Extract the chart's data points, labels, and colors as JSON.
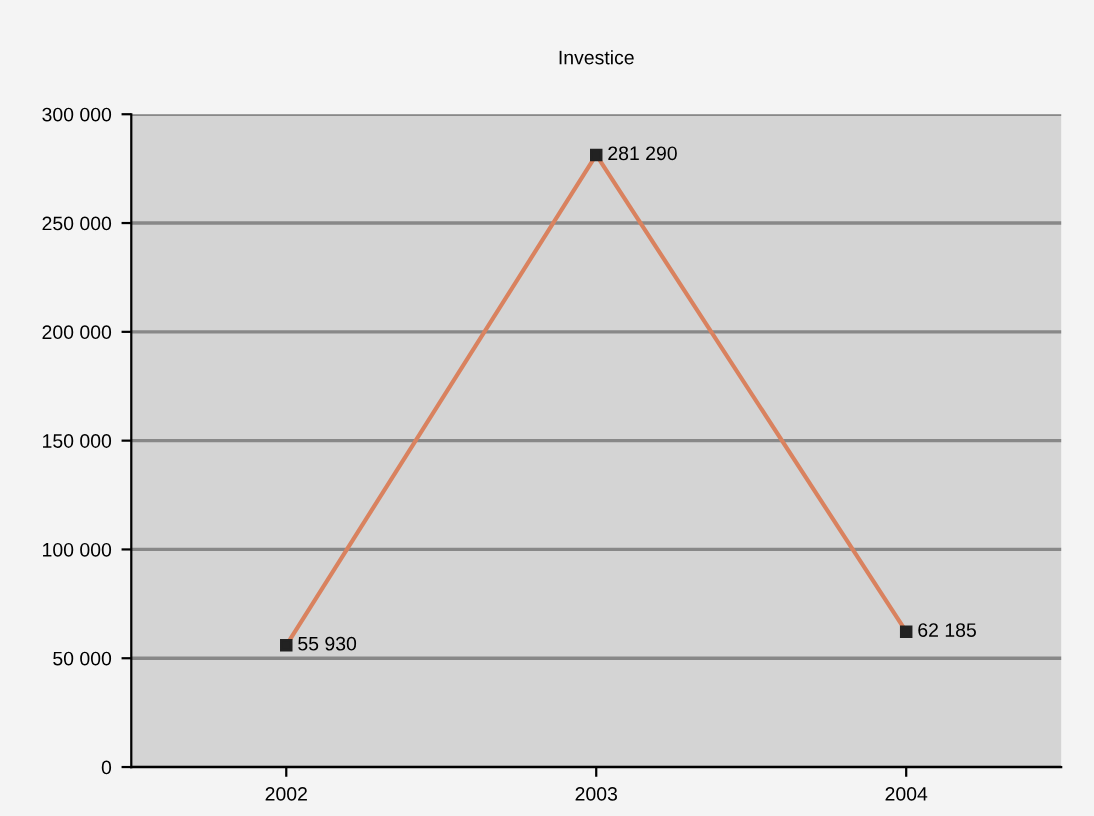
{
  "chart_data": {
    "type": "line",
    "title": "Investice",
    "categories": [
      "2002",
      "2003",
      "2004"
    ],
    "series": [
      {
        "color": "#d9825f",
        "values": [
          55930,
          281290,
          62185
        ]
      }
    ],
    "value_labels": [
      "55 930",
      "281 290",
      "62 185"
    ],
    "ylim": [
      0,
      300000
    ],
    "yticks": [
      {
        "value": 0,
        "label": "0"
      },
      {
        "value": 50000,
        "label": "50 000"
      },
      {
        "value": 100000,
        "label": "100 000"
      },
      {
        "value": 150000,
        "label": "150 000"
      },
      {
        "value": 200000,
        "label": "200 000"
      },
      {
        "value": 250000,
        "label": "250 000"
      },
      {
        "value": 300000,
        "label": "300 000"
      }
    ],
    "grid": "y",
    "legend": false,
    "marker": "square",
    "line_style": "solid"
  }
}
